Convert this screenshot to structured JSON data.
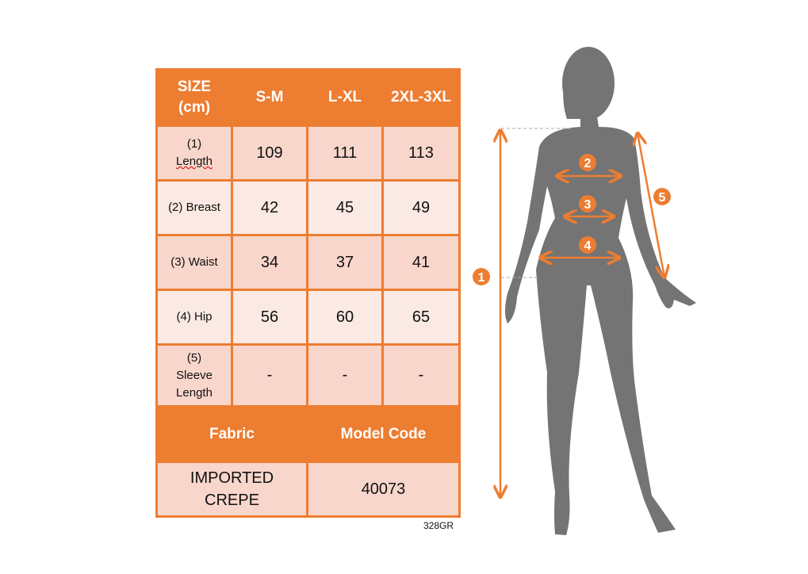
{
  "table": {
    "header": [
      "SIZE (cm)",
      "S-M",
      "L-XL",
      "2XL-3XL"
    ],
    "header_lines": [
      [
        "SIZE",
        "(cm)"
      ],
      [
        "S-M"
      ],
      [
        "L-XL"
      ],
      [
        "2XL-",
        "3XL"
      ]
    ],
    "rows": [
      {
        "label_lines": [
          "(1)",
          "Length"
        ],
        "values": [
          "109",
          "111",
          "113"
        ]
      },
      {
        "label_lines": [
          "(2) Breast"
        ],
        "values": [
          "42",
          "45",
          "49"
        ]
      },
      {
        "label_lines": [
          "(3) Waist"
        ],
        "values": [
          "34",
          "37",
          "41"
        ]
      },
      {
        "label_lines": [
          "(4) Hip"
        ],
        "values": [
          "56",
          "60",
          "65"
        ]
      },
      {
        "label_lines": [
          "(5)",
          "Sleeve",
          "Length"
        ],
        "values": [
          "-",
          "-",
          "-"
        ]
      }
    ],
    "footer_headers": [
      "Fabric",
      "Model Code"
    ],
    "fabric_lines": [
      "IMPORTED",
      "CREPE"
    ],
    "model_code": "40073"
  },
  "product_code": "328GR",
  "figure": {
    "markers": [
      "1",
      "2",
      "3",
      "4",
      "5"
    ]
  },
  "colors": {
    "accent": "#ed7d31",
    "row_dark": "#f8d6cb",
    "row_light": "#fbe9e3",
    "silhouette": "#747474"
  }
}
